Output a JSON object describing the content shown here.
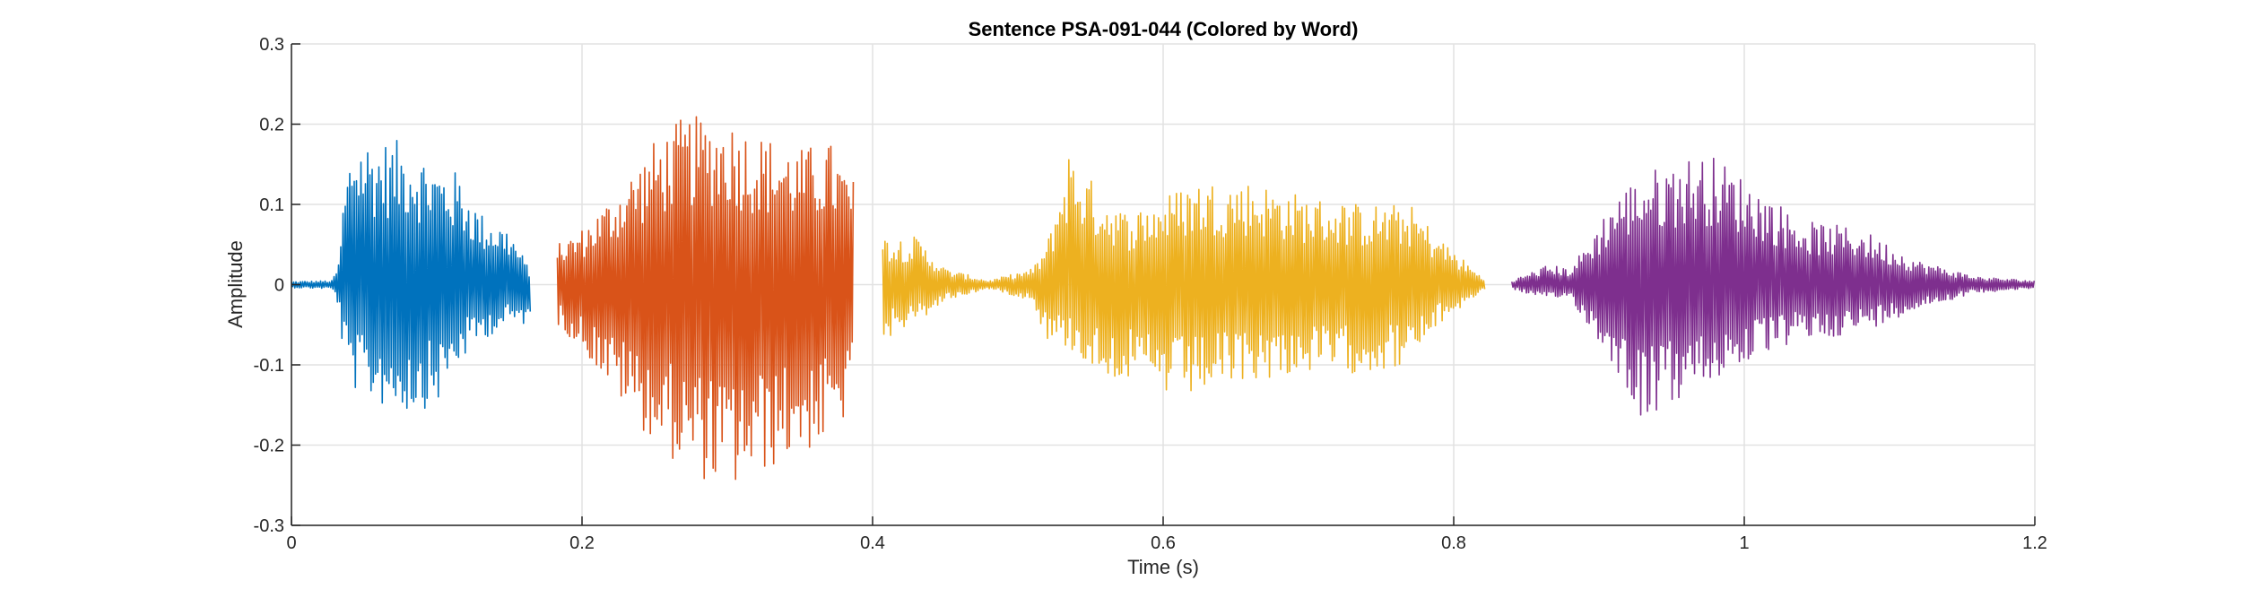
{
  "chart_data": {
    "type": "line",
    "title": "Sentence PSA-091-044 (Colored by Word)",
    "xlabel": "Time (s)",
    "ylabel": "Amplitude",
    "xlim": [
      0,
      1.2
    ],
    "ylim": [
      -0.3,
      0.3
    ],
    "grid": true,
    "legend": "none",
    "x_ticks": [
      {
        "value": 0,
        "label": "0"
      },
      {
        "value": 0.2,
        "label": "0.2"
      },
      {
        "value": 0.4,
        "label": "0.4"
      },
      {
        "value": 0.6,
        "label": "0.6"
      },
      {
        "value": 0.8,
        "label": "0.8"
      },
      {
        "value": 1.0,
        "label": "1"
      },
      {
        "value": 1.2,
        "label": "1.2"
      }
    ],
    "y_ticks": [
      {
        "value": -0.3,
        "label": "-0.3"
      },
      {
        "value": -0.2,
        "label": "-0.2"
      },
      {
        "value": -0.1,
        "label": "-0.1"
      },
      {
        "value": 0,
        "label": "0"
      },
      {
        "value": 0.1,
        "label": "0.1"
      },
      {
        "value": 0.2,
        "label": "0.2"
      },
      {
        "value": 0.3,
        "label": "0.3"
      }
    ],
    "series": [
      {
        "color": "#0072BD",
        "t_start": 0.0,
        "t_end": 0.165,
        "envelope": [
          [
            0.0,
            0.004,
            0.004
          ],
          [
            0.028,
            0.005,
            0.005
          ],
          [
            0.033,
            0.03,
            0.03
          ],
          [
            0.035,
            0.1,
            0.08
          ],
          [
            0.042,
            0.19,
            0.13
          ],
          [
            0.06,
            0.18,
            0.15
          ],
          [
            0.08,
            0.18,
            0.16
          ],
          [
            0.1,
            0.15,
            0.15
          ],
          [
            0.115,
            0.14,
            0.1
          ],
          [
            0.13,
            0.09,
            0.07
          ],
          [
            0.15,
            0.07,
            0.05
          ],
          [
            0.165,
            0.015,
            0.05
          ]
        ]
      },
      {
        "color": "#D95319",
        "t_start": 0.183,
        "t_end": 0.387,
        "envelope": [
          [
            0.183,
            0.05,
            0.05
          ],
          [
            0.2,
            0.07,
            0.08
          ],
          [
            0.22,
            0.11,
            0.13
          ],
          [
            0.25,
            0.18,
            0.2
          ],
          [
            0.27,
            0.21,
            0.23
          ],
          [
            0.3,
            0.21,
            0.26
          ],
          [
            0.32,
            0.19,
            0.24
          ],
          [
            0.35,
            0.17,
            0.21
          ],
          [
            0.37,
            0.18,
            0.2
          ],
          [
            0.387,
            0.13,
            0.15
          ]
        ]
      },
      {
        "color": "#EDB120",
        "t_start": 0.407,
        "t_end": 0.822,
        "envelope": [
          [
            0.407,
            0.06,
            0.07
          ],
          [
            0.43,
            0.06,
            0.05
          ],
          [
            0.45,
            0.02,
            0.02
          ],
          [
            0.48,
            0.005,
            0.005
          ],
          [
            0.51,
            0.02,
            0.02
          ],
          [
            0.52,
            0.05,
            0.07
          ],
          [
            0.535,
            0.17,
            0.08
          ],
          [
            0.555,
            0.12,
            0.11
          ],
          [
            0.575,
            0.09,
            0.12
          ],
          [
            0.6,
            0.11,
            0.14
          ],
          [
            0.62,
            0.13,
            0.14
          ],
          [
            0.66,
            0.13,
            0.12
          ],
          [
            0.7,
            0.11,
            0.11
          ],
          [
            0.74,
            0.1,
            0.11
          ],
          [
            0.77,
            0.1,
            0.1
          ],
          [
            0.79,
            0.06,
            0.05
          ],
          [
            0.822,
            0.005,
            0.005
          ]
        ]
      },
      {
        "color": "#7E2F8E",
        "t_start": 0.84,
        "t_end": 1.2,
        "envelope": [
          [
            0.84,
            0.005,
            0.005
          ],
          [
            0.865,
            0.025,
            0.02
          ],
          [
            0.88,
            0.02,
            0.015
          ],
          [
            0.895,
            0.06,
            0.06
          ],
          [
            0.91,
            0.11,
            0.1
          ],
          [
            0.93,
            0.14,
            0.17
          ],
          [
            0.96,
            0.16,
            0.14
          ],
          [
            0.98,
            0.16,
            0.12
          ],
          [
            1.01,
            0.12,
            0.09
          ],
          [
            1.04,
            0.08,
            0.07
          ],
          [
            1.08,
            0.07,
            0.06
          ],
          [
            1.12,
            0.03,
            0.03
          ],
          [
            1.16,
            0.01,
            0.01
          ],
          [
            1.2,
            0.005,
            0.005
          ]
        ]
      }
    ]
  }
}
